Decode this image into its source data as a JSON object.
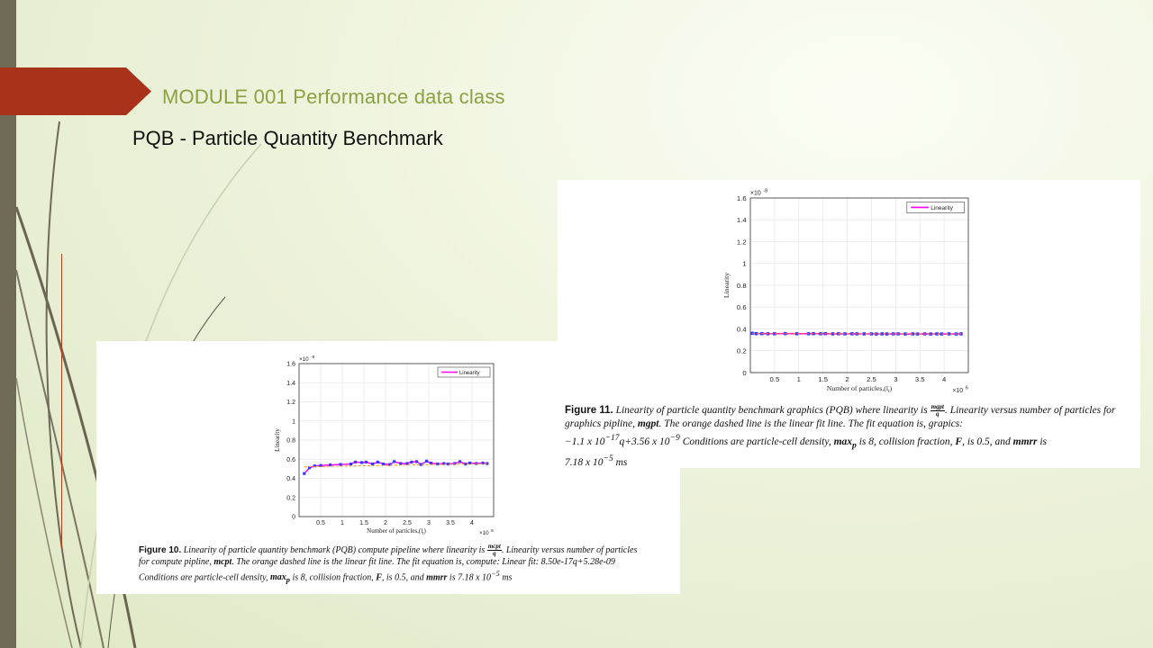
{
  "slide": {
    "title": "MODULE 001 Performance data class",
    "subtitle": "PQB - Particle Quantity Benchmark"
  },
  "colors": {
    "title": "#8aa142",
    "banner": "#a8321a",
    "line": "#ff00ff",
    "markers": "#3a3aff",
    "fit": "#ff8c00"
  },
  "figure10": {
    "caption_label": "Figure 10.",
    "caption_a": "Linearity of particle quantity benchmark (PQB) compute pipeline where linearity is",
    "frac_num": "mcpt",
    "frac_den": "q",
    "caption_b": ". Linearity versus number of particles for compute pipline,",
    "bold1": "mcpt",
    "caption_c": ". The orange dashed line is the linear fit line. The fit equation is, compute: Linear fit: 8.50e-17q+5.28e-09 Conditions are particle-cell density,",
    "bold2": "max",
    "bold2_sub": "p",
    "caption_d": "is 8, collision fraction,",
    "bold3": "F",
    "caption_e": ", is 0.5, and",
    "bold4": "mmrr",
    "caption_f": "is 7.18 x 10",
    "exp": "−5",
    "unit": "ms"
  },
  "figure11": {
    "caption_label": "Figure 11.",
    "caption_a": "Linearity of particle quantity benchmark graphics (PQB) where linearity is",
    "frac_num": "mgpt",
    "frac_den": "q",
    "caption_b": ". Linearity versus number of particles for graphics pipline,",
    "bold1": "mgpt",
    "caption_c": ". The orange dashed line is the linear fit line. The fit equation is, grapics:",
    "eq_a": "−1.1 x 10",
    "eq_a_exp": "−17",
    "eq_b": "q+3.56 x 10",
    "eq_b_exp": "−9",
    "caption_d": "Conditions are particle-cell density,",
    "bold2": "max",
    "bold2_sub": "p",
    "caption_e": "is 8, collision fraction,",
    "bold3": "F",
    "caption_f": ", is 0.5, and",
    "bold4": "mmrr",
    "caption_g": "is",
    "caption_h": "7.18 x 10",
    "exp": "−5",
    "unit": "ms"
  },
  "chart_data": [
    {
      "type": "line",
      "id": "fig10",
      "xlabel": "Number of particles,(l",
      "xlabel_sub": "t",
      "xlabel_end": ")",
      "ylabel": "Linearity",
      "x_multiplier": "×10",
      "x_multiplier_exp": "6",
      "y_multiplier": "×10",
      "y_multiplier_exp": "-8",
      "xlim": [
        0,
        4.5
      ],
      "ylim": [
        0,
        1.6
      ],
      "xticks": [
        0.5,
        1,
        1.5,
        2,
        2.5,
        3,
        3.5,
        4
      ],
      "yticks": [
        0,
        0.2,
        0.4,
        0.6,
        0.8,
        1,
        1.2,
        1.4,
        1.6
      ],
      "ytick_labels": [
        "0",
        "0.2",
        "0.4",
        "0.6",
        "0.8",
        "1",
        "1.2",
        "1.4",
        "1.6"
      ],
      "grid": true,
      "legend_position": "top-right",
      "series": [
        {
          "name": "Linearity",
          "x": [
            0.12,
            0.24,
            0.36,
            0.5,
            0.72,
            0.96,
            1.2,
            1.3,
            1.45,
            1.55,
            1.7,
            1.82,
            1.95,
            2.1,
            2.2,
            2.35,
            2.5,
            2.6,
            2.72,
            2.82,
            2.95,
            3.05,
            3.2,
            3.35,
            3.45,
            3.6,
            3.72,
            3.85,
            3.95,
            4.1,
            4.25,
            4.35
          ],
          "y": [
            0.45,
            0.51,
            0.53,
            0.535,
            0.54,
            0.545,
            0.55,
            0.57,
            0.565,
            0.57,
            0.55,
            0.57,
            0.55,
            0.545,
            0.575,
            0.555,
            0.555,
            0.57,
            0.575,
            0.545,
            0.58,
            0.56,
            0.55,
            0.555,
            0.55,
            0.555,
            0.575,
            0.55,
            0.56,
            0.555,
            0.56,
            0.555
          ]
        }
      ],
      "fit": {
        "name": "Linear fit",
        "x": [
          0.12,
          4.35
        ],
        "y": [
          0.52,
          0.555
        ]
      }
    },
    {
      "type": "line",
      "id": "fig11",
      "xlabel": "Number of particles,(l",
      "xlabel_sub": "t",
      "xlabel_end": ")",
      "ylabel": "Linearity",
      "x_multiplier": "×10",
      "x_multiplier_exp": "6",
      "y_multiplier": "×10",
      "y_multiplier_exp": "-8",
      "xlim": [
        0,
        4.5
      ],
      "ylim": [
        0,
        1.6
      ],
      "xticks": [
        0.5,
        1,
        1.5,
        2,
        2.5,
        3,
        3.5,
        4
      ],
      "yticks": [
        0,
        0.2,
        0.4,
        0.6,
        0.8,
        1,
        1.2,
        1.4,
        1.6
      ],
      "ytick_labels": [
        "0",
        "0.2",
        "0.4",
        "0.6",
        "0.8",
        "1",
        "1.2",
        "1.4",
        "1.6"
      ],
      "grid": true,
      "legend_position": "top-right",
      "series": [
        {
          "name": "Linearity",
          "x": [
            0.04,
            0.12,
            0.24,
            0.36,
            0.5,
            0.72,
            0.96,
            1.2,
            1.3,
            1.45,
            1.55,
            1.7,
            1.82,
            1.95,
            2.1,
            2.2,
            2.35,
            2.5,
            2.6,
            2.72,
            2.82,
            2.95,
            3.05,
            3.2,
            3.35,
            3.45,
            3.6,
            3.72,
            3.85,
            3.95,
            4.1,
            4.25,
            4.35
          ],
          "y": [
            0.36,
            0.357,
            0.357,
            0.356,
            0.356,
            0.357,
            0.356,
            0.356,
            0.357,
            0.356,
            0.357,
            0.355,
            0.356,
            0.355,
            0.356,
            0.355,
            0.355,
            0.355,
            0.354,
            0.355,
            0.354,
            0.355,
            0.355,
            0.354,
            0.355,
            0.354,
            0.355,
            0.354,
            0.355,
            0.354,
            0.355,
            0.354,
            0.355
          ]
        }
      ],
      "fit": {
        "name": "Linear fit",
        "x": [
          0.04,
          4.35
        ],
        "y": [
          0.357,
          0.354
        ]
      }
    }
  ]
}
